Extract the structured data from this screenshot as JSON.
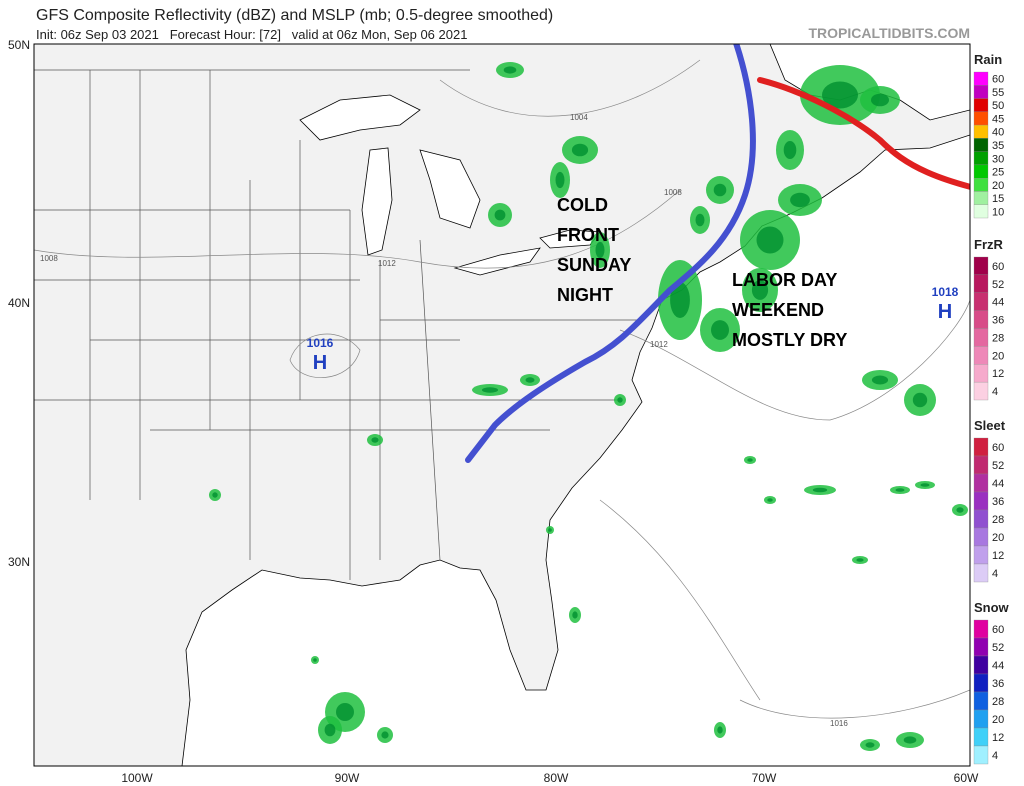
{
  "header": {
    "title": "GFS Composite Reflectivity (dBZ) and MSLP (mb; 0.5-degree smoothed)",
    "init_line": "Init: 06z Sep 03 2021   Forecast Hour: [72]   valid at 06z Mon, Sep 06 2021",
    "credit": "TROPICALTIDBITS.COM"
  },
  "map": {
    "lat_labels": [
      "50N",
      "40N",
      "30N"
    ],
    "lon_labels": [
      "100W",
      "90W",
      "80W",
      "70W",
      "60W"
    ],
    "isobar_labels": [
      "1004",
      "1008",
      "1008",
      "1012",
      "1012",
      "1016"
    ],
    "highs": [
      {
        "pressure": "1016",
        "symbol": "H"
      },
      {
        "pressure": "1018",
        "symbol": "H"
      }
    ],
    "annotations": {
      "cold_front": [
        "COLD",
        "FRONT",
        "SUNDAY",
        "NIGHT"
      ],
      "labor_day": [
        "LABOR DAY",
        "WEEKEND",
        "MOSTLY DRY"
      ]
    }
  },
  "legend": [
    {
      "title": "Rain",
      "labels": [
        60,
        55,
        50,
        45,
        40,
        35,
        30,
        25,
        20,
        15,
        10
      ],
      "colors": [
        "#ff00ff",
        "#c000c0",
        "#e00000",
        "#ff5000",
        "#ffc000",
        "#006400",
        "#00a000",
        "#00c800",
        "#40e040",
        "#a0f0a0",
        "#e0ffe0"
      ]
    },
    {
      "title": "FrzR",
      "labels": [
        60,
        52,
        44,
        36,
        28,
        20,
        12,
        4
      ],
      "colors": [
        "#a0004a",
        "#b8185e",
        "#c83070",
        "#d84c88",
        "#e468a0",
        "#ee88b8",
        "#f6aacc",
        "#fcd0e2"
      ]
    },
    {
      "title": "Sleet",
      "labels": [
        60,
        52,
        44,
        36,
        28,
        20,
        12,
        4
      ],
      "colors": [
        "#d02040",
        "#c02a70",
        "#b030a0",
        "#9a30c0",
        "#9050d0",
        "#a878e0",
        "#c0a0ec",
        "#dcccf6"
      ]
    },
    {
      "title": "Snow",
      "labels": [
        60,
        52,
        44,
        36,
        28,
        20,
        12,
        4
      ],
      "colors": [
        "#e000a0",
        "#9000b0",
        "#4000a0",
        "#1020c0",
        "#1060e0",
        "#20a0f0",
        "#40d0f8",
        "#a0f0ff"
      ]
    }
  ]
}
